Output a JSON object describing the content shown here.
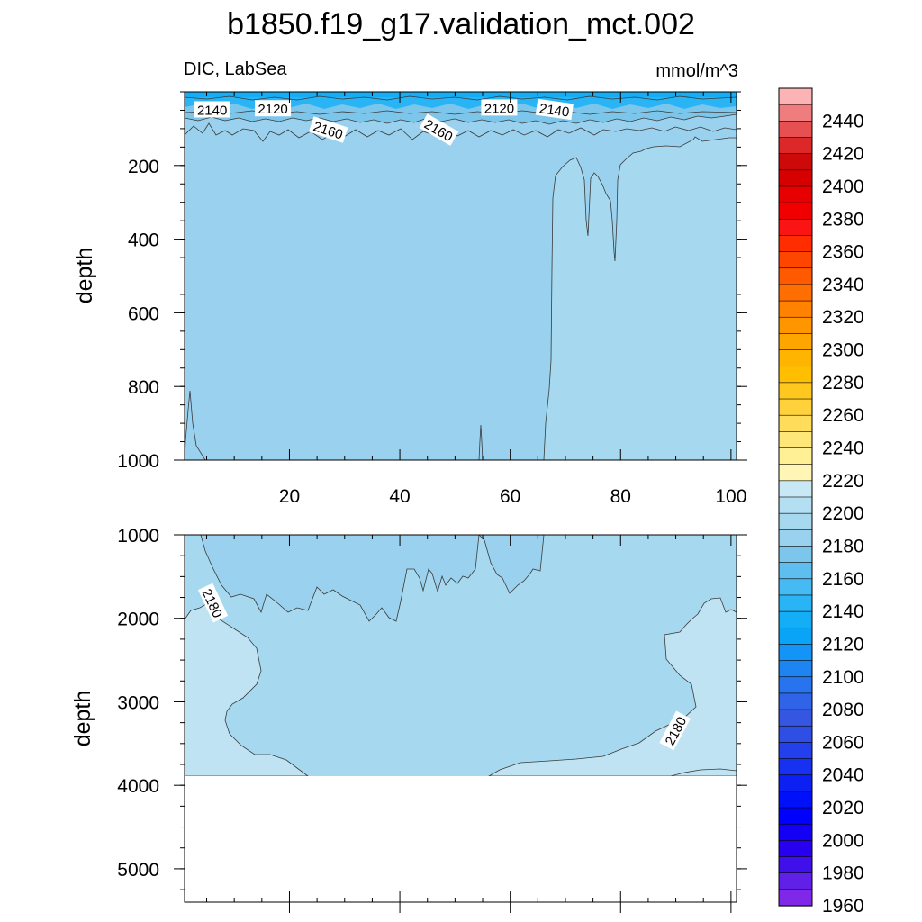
{
  "title": "b1850.f19_g17.validation_mct.002",
  "subtitle_left": "DIC, LabSea",
  "subtitle_right": "mmol/m^3",
  "chart_data": [
    {
      "type": "heatmap",
      "panel": "top",
      "variable": "DIC, LabSea",
      "units": "mmol/m^3",
      "ylabel": "depth",
      "xlim": [
        1,
        101
      ],
      "ylim": [
        0,
        1000
      ],
      "y_inverted": true,
      "x_ticks": [
        20,
        40,
        60,
        80,
        100
      ],
      "y_ticks": [
        200,
        400,
        600,
        800,
        1000
      ],
      "contour_labels": [
        {
          "value": "2140",
          "x": 6,
          "y": 50
        },
        {
          "value": "2120",
          "x": 17,
          "y": 47
        },
        {
          "value": "2160",
          "x": 27,
          "y": 105
        },
        {
          "value": "2160",
          "x": 47,
          "y": 105
        },
        {
          "value": "2120",
          "x": 58,
          "y": 45
        },
        {
          "value": "2140",
          "x": 68,
          "y": 50
        }
      ],
      "shaded_regions": [
        {
          "range": "2100-2160",
          "extent": "surface layer, depth ~0-90"
        },
        {
          "range": "2160-2170",
          "extent": "x 1-101, depth ~90-1000"
        },
        {
          "range": "2170-2180",
          "extent": "x ~66-101, depth ~170-1000"
        }
      ]
    },
    {
      "type": "heatmap",
      "panel": "bottom",
      "variable": "DIC, LabSea",
      "units": "mmol/m^3",
      "ylabel": "depth",
      "xlim": [
        1,
        101
      ],
      "ylim": [
        1000,
        5400
      ],
      "y_inverted": true,
      "x_ticks": [
        20,
        40,
        60,
        80,
        100
      ],
      "y_ticks": [
        1000,
        2000,
        3000,
        4000,
        5000
      ],
      "ocean_bottom_depth": 3870,
      "contour_labels": [
        {
          "value": "2180",
          "x": 6,
          "y": 1820
        },
        {
          "value": "2180",
          "x": 90,
          "y": 3350
        }
      ],
      "shaded_regions": [
        {
          "range": "2160-2170",
          "extent": "x ~1-66, depth 1000-~2000"
        },
        {
          "range": "2170-2180",
          "extent": "interior, depth ~1800-3870"
        },
        {
          "range": "2180-2190",
          "extent": "west and east margins and bottom near 3870"
        }
      ]
    }
  ],
  "colorbar": {
    "labels": [
      "2440",
      "2420",
      "2400",
      "2380",
      "2360",
      "2340",
      "2320",
      "2300",
      "2280",
      "2260",
      "2240",
      "2220",
      "2200",
      "2180",
      "2160",
      "2140",
      "2120",
      "2100",
      "2080",
      "2060",
      "2040",
      "2020",
      "2000",
      "1980",
      "1960"
    ],
    "levels_top_to_bottom": [
      "#fbb3b3",
      "#f07d7d",
      "#e65050",
      "#dc2828",
      "#cd0a0a",
      "#d70000",
      "#e60000",
      "#f00000",
      "#fa1414",
      "#ff2d00",
      "#ff4600",
      "#ff5a00",
      "#ff6e00",
      "#ff8200",
      "#ff9600",
      "#ffa500",
      "#ffb400",
      "#ffbe00",
      "#ffc81e",
      "#ffd23c",
      "#ffdc5a",
      "#ffe678",
      "#fff096",
      "#fff5b4",
      "#c8e8f5",
      "#b4def2",
      "#a6d9ef",
      "#99d1ee",
      "#7cc6ec",
      "#5fbef0",
      "#46bbf3",
      "#28b4f5",
      "#14aef6",
      "#0aa4f6",
      "#1494f6",
      "#1e84f2",
      "#2874ee",
      "#3064e8",
      "#3556e0",
      "#2f4fe4",
      "#2440ec",
      "#1830f0",
      "#0c20f4",
      "#0010f8",
      "#0000ff",
      "#1400f5",
      "#2800f0",
      "#4010ea",
      "#6020e8",
      "#8028e8"
    ]
  },
  "colors": {
    "level_2120_2140": "#28b4f5",
    "level_2140_2160": "#7cc6ec",
    "level_2160_2170": "#99d1ee",
    "level_2170_2180": "#a6d9ef",
    "level_2180_2190": "#bfe3f3",
    "contour_line": "#3a3a3a"
  }
}
